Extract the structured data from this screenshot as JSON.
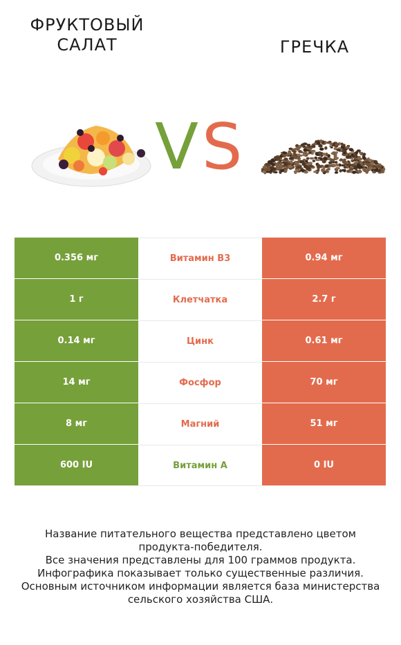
{
  "left_product": {
    "title_line1": "ФРУКТОВЫЙ",
    "title_line2": "САЛАТ"
  },
  "right_product": {
    "title": "ГРЕЧКА"
  },
  "vs": {
    "v": "V",
    "s": "S"
  },
  "colors": {
    "left": "#76a03a",
    "right": "#e36b4d"
  },
  "rows": [
    {
      "left": "0.356 мг",
      "nutrient": "Витамин B3",
      "right": "0.94 мг",
      "winner": "right"
    },
    {
      "left": "1 г",
      "nutrient": "Клетчатка",
      "right": "2.7 г",
      "winner": "right"
    },
    {
      "left": "0.14 мг",
      "nutrient": "Цинк",
      "right": "0.61 мг",
      "winner": "right"
    },
    {
      "left": "14 мг",
      "nutrient": "Фосфор",
      "right": "70 мг",
      "winner": "right"
    },
    {
      "left": "8 мг",
      "nutrient": "Магний",
      "right": "51 мг",
      "winner": "right"
    },
    {
      "left": "600 IU",
      "nutrient": "Витамин A",
      "right": "0 IU",
      "winner": "left"
    }
  ],
  "footer": [
    "Название питательного вещества представлено цветом",
    "продукта-победителя.",
    "Все значения представлены для 100 граммов продукта.",
    "Инфографика показывает только существенные различия.",
    "Основным источником информации является база министерства",
    "сельского хозяйства США."
  ]
}
